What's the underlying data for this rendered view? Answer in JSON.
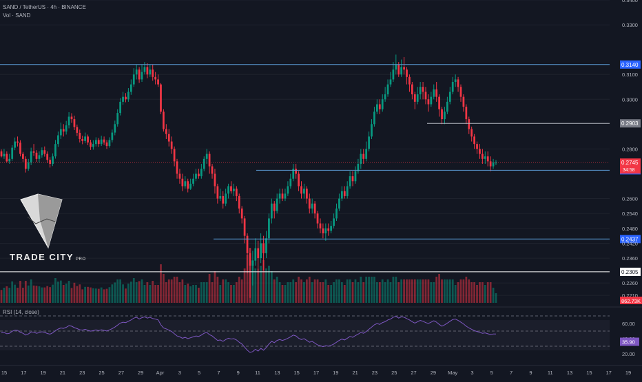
{
  "header": {
    "symbol_line": "SAND / TetherUS · 4h · BINANCE",
    "volume_line": "Vol · SAND",
    "rsi_line": "RSI (14, close)"
  },
  "logo": {
    "brand": "TRADE CITY",
    "suffix": "PRO"
  },
  "chart_data": {
    "type": "candlestick",
    "title": "SAND / TetherUS · 4h · BINANCE",
    "price_axis": {
      "range": [
        0.218,
        0.34
      ],
      "ticks": [
        "0.3400",
        "0.3300",
        "0.3100",
        "0.3000",
        "0.2800",
        "0.2600",
        "0.2540",
        "0.2480",
        "0.2420",
        "0.2360",
        "0.2260",
        "0.2210"
      ]
    },
    "time_axis": {
      "ticks": [
        "15",
        "17",
        "19",
        "21",
        "23",
        "25",
        "27",
        "29",
        "Apr",
        "3",
        "5",
        "7",
        "9",
        "11",
        "13",
        "15",
        "17",
        "19",
        "21",
        "23",
        "25",
        "27",
        "29",
        "May",
        "3",
        "5",
        "7",
        "9",
        "11",
        "13",
        "15",
        "17",
        "19"
      ]
    },
    "levels": [
      {
        "price": 0.314,
        "label": "0.3140",
        "color": "#5b9bd5",
        "style": "blue"
      },
      {
        "price": 0.2903,
        "label": "0.2903",
        "color": "#b2b5be",
        "style": "grey"
      },
      {
        "price": 0.2714,
        "label": "0.2714",
        "color": "#5b9bd5",
        "style": "blue"
      },
      {
        "price": 0.2437,
        "label": "0.2437",
        "color": "#5b9bd5",
        "style": "blue"
      },
      {
        "price": 0.2305,
        "label": "0.2305",
        "color": "#ffffff",
        "style": "white"
      }
    ],
    "last_price": {
      "value": "0.2745",
      "countdown": "34:58",
      "color": "#f23645"
    },
    "volume": {
      "label": "862.73K",
      "color": "#f23645"
    },
    "rsi": {
      "upper": "60.00",
      "middle": "40.00",
      "lower": "20.00",
      "value": "35.90",
      "range": [
        10,
        80
      ],
      "bands": [
        70,
        50,
        30
      ]
    },
    "candles": [
      [
        0.279,
        0.277,
        0.2798,
        0.2766
      ],
      [
        0.277,
        0.278,
        0.28,
        0.276
      ],
      [
        0.278,
        0.275,
        0.279,
        0.2745
      ],
      [
        0.275,
        0.276,
        0.278,
        0.274
      ],
      [
        0.276,
        0.2805,
        0.2815,
        0.2752
      ],
      [
        0.2805,
        0.283,
        0.2846,
        0.2795
      ],
      [
        0.283,
        0.2825,
        0.285,
        0.281
      ],
      [
        0.2825,
        0.278,
        0.2835,
        0.277
      ],
      [
        0.278,
        0.276,
        0.2788,
        0.2748
      ],
      [
        0.276,
        0.272,
        0.277,
        0.2705
      ],
      [
        0.272,
        0.2745,
        0.276,
        0.2712
      ],
      [
        0.2745,
        0.279,
        0.2805,
        0.2735
      ],
      [
        0.279,
        0.2785,
        0.282,
        0.2772
      ],
      [
        0.2785,
        0.276,
        0.2795,
        0.2748
      ],
      [
        0.276,
        0.2775,
        0.279,
        0.2745
      ],
      [
        0.2775,
        0.2795,
        0.2806,
        0.2765
      ],
      [
        0.2795,
        0.278,
        0.281,
        0.2769
      ],
      [
        0.278,
        0.2756,
        0.279,
        0.2744
      ],
      [
        0.2756,
        0.274,
        0.2767,
        0.2725
      ],
      [
        0.274,
        0.277,
        0.2782,
        0.2731
      ],
      [
        0.277,
        0.282,
        0.2836,
        0.2761
      ],
      [
        0.282,
        0.2855,
        0.287,
        0.2808
      ],
      [
        0.2855,
        0.288,
        0.2906,
        0.284
      ],
      [
        0.288,
        0.287,
        0.29,
        0.285
      ],
      [
        0.287,
        0.2895,
        0.2913,
        0.2858
      ],
      [
        0.2895,
        0.293,
        0.2948,
        0.2883
      ],
      [
        0.293,
        0.292,
        0.2944,
        0.2905
      ],
      [
        0.292,
        0.2888,
        0.2934,
        0.2876
      ],
      [
        0.2888,
        0.2865,
        0.2898,
        0.2852
      ],
      [
        0.2865,
        0.284,
        0.2878,
        0.2826
      ],
      [
        0.284,
        0.2832,
        0.2853,
        0.2819
      ],
      [
        0.2832,
        0.285,
        0.2866,
        0.2823
      ],
      [
        0.285,
        0.2826,
        0.2858,
        0.2815
      ],
      [
        0.2826,
        0.2808,
        0.2837,
        0.2796
      ],
      [
        0.2808,
        0.282,
        0.2835,
        0.2797
      ],
      [
        0.282,
        0.2836,
        0.2847,
        0.281
      ],
      [
        0.2836,
        0.282,
        0.2844,
        0.2808
      ],
      [
        0.282,
        0.2838,
        0.2853,
        0.2812
      ],
      [
        0.2838,
        0.2826,
        0.285,
        0.2816
      ],
      [
        0.2826,
        0.2812,
        0.2836,
        0.28
      ],
      [
        0.2812,
        0.2836,
        0.2847,
        0.2805
      ],
      [
        0.2836,
        0.2866,
        0.2878,
        0.2826
      ],
      [
        0.2866,
        0.29,
        0.2914,
        0.2855
      ],
      [
        0.29,
        0.2945,
        0.296,
        0.289
      ],
      [
        0.2945,
        0.299,
        0.3005,
        0.2935
      ],
      [
        0.299,
        0.301,
        0.303,
        0.2978
      ],
      [
        0.301,
        0.3,
        0.3025,
        0.2988
      ],
      [
        0.3,
        0.303,
        0.3045,
        0.299
      ],
      [
        0.303,
        0.306,
        0.308,
        0.3018
      ],
      [
        0.306,
        0.31,
        0.3125,
        0.305
      ],
      [
        0.31,
        0.312,
        0.314,
        0.308
      ],
      [
        0.312,
        0.308,
        0.313,
        0.3066
      ],
      [
        0.308,
        0.311,
        0.314,
        0.307
      ],
      [
        0.311,
        0.313,
        0.315,
        0.31
      ],
      [
        0.313,
        0.31,
        0.3145,
        0.3085
      ],
      [
        0.31,
        0.312,
        0.314,
        0.309
      ],
      [
        0.312,
        0.309,
        0.314,
        0.3075
      ],
      [
        0.309,
        0.308,
        0.311,
        0.306
      ],
      [
        0.308,
        0.306,
        0.31,
        0.305
      ],
      [
        0.306,
        0.295,
        0.3065,
        0.294
      ],
      [
        0.295,
        0.288,
        0.296,
        0.287
      ],
      [
        0.288,
        0.286,
        0.29,
        0.284
      ],
      [
        0.286,
        0.283,
        0.288,
        0.281
      ],
      [
        0.283,
        0.28,
        0.285,
        0.278
      ],
      [
        0.28,
        0.275,
        0.281,
        0.273
      ],
      [
        0.275,
        0.27,
        0.276,
        0.268
      ],
      [
        0.27,
        0.268,
        0.272,
        0.266
      ],
      [
        0.268,
        0.265,
        0.27,
        0.263
      ],
      [
        0.265,
        0.267,
        0.269,
        0.264
      ],
      [
        0.267,
        0.264,
        0.268,
        0.2625
      ],
      [
        0.264,
        0.266,
        0.268,
        0.2635
      ],
      [
        0.266,
        0.268,
        0.27,
        0.265
      ],
      [
        0.268,
        0.27,
        0.272,
        0.267
      ],
      [
        0.27,
        0.269,
        0.272,
        0.268
      ],
      [
        0.269,
        0.272,
        0.274,
        0.268
      ],
      [
        0.272,
        0.276,
        0.277,
        0.271
      ],
      [
        0.276,
        0.278,
        0.28,
        0.274
      ],
      [
        0.278,
        0.273,
        0.279,
        0.27
      ],
      [
        0.273,
        0.27,
        0.274,
        0.268
      ],
      [
        0.27,
        0.265,
        0.272,
        0.262
      ],
      [
        0.265,
        0.26,
        0.266,
        0.258
      ],
      [
        0.26,
        0.261,
        0.264,
        0.259
      ],
      [
        0.261,
        0.258,
        0.263,
        0.256
      ],
      [
        0.258,
        0.262,
        0.264,
        0.257
      ],
      [
        0.262,
        0.265,
        0.266,
        0.26
      ],
      [
        0.265,
        0.263,
        0.267,
        0.262
      ],
      [
        0.263,
        0.264,
        0.266,
        0.261
      ],
      [
        0.264,
        0.261,
        0.265,
        0.259
      ],
      [
        0.261,
        0.256,
        0.262,
        0.254
      ],
      [
        0.256,
        0.252,
        0.257,
        0.25
      ],
      [
        0.252,
        0.245,
        0.253,
        0.242
      ],
      [
        0.245,
        0.238,
        0.246,
        0.23
      ],
      [
        0.238,
        0.233,
        0.24,
        0.22
      ],
      [
        0.233,
        0.235,
        0.239,
        0.225
      ],
      [
        0.235,
        0.24,
        0.244,
        0.233
      ],
      [
        0.24,
        0.236,
        0.243,
        0.232
      ],
      [
        0.236,
        0.242,
        0.246,
        0.234
      ],
      [
        0.242,
        0.238,
        0.245,
        0.231
      ],
      [
        0.238,
        0.244,
        0.247,
        0.236
      ],
      [
        0.244,
        0.252,
        0.254,
        0.242
      ],
      [
        0.252,
        0.258,
        0.26,
        0.25
      ],
      [
        0.258,
        0.255,
        0.259,
        0.252
      ],
      [
        0.255,
        0.26,
        0.262,
        0.254
      ],
      [
        0.26,
        0.262,
        0.264,
        0.258
      ],
      [
        0.262,
        0.26,
        0.264,
        0.259
      ],
      [
        0.26,
        0.262,
        0.264,
        0.259
      ],
      [
        0.262,
        0.265,
        0.267,
        0.261
      ],
      [
        0.265,
        0.268,
        0.27,
        0.264
      ],
      [
        0.268,
        0.272,
        0.274,
        0.267
      ],
      [
        0.272,
        0.27,
        0.274,
        0.268
      ],
      [
        0.27,
        0.265,
        0.271,
        0.263
      ],
      [
        0.265,
        0.262,
        0.267,
        0.26
      ],
      [
        0.262,
        0.264,
        0.266,
        0.26
      ],
      [
        0.264,
        0.26,
        0.265,
        0.258
      ],
      [
        0.26,
        0.256,
        0.262,
        0.254
      ],
      [
        0.256,
        0.258,
        0.26,
        0.254
      ],
      [
        0.258,
        0.254,
        0.259,
        0.252
      ],
      [
        0.254,
        0.25,
        0.255,
        0.248
      ],
      [
        0.25,
        0.248,
        0.252,
        0.246
      ],
      [
        0.248,
        0.246,
        0.25,
        0.244
      ],
      [
        0.246,
        0.248,
        0.25,
        0.243
      ],
      [
        0.248,
        0.247,
        0.25,
        0.245
      ],
      [
        0.247,
        0.249,
        0.251,
        0.246
      ],
      [
        0.249,
        0.252,
        0.254,
        0.248
      ],
      [
        0.252,
        0.256,
        0.258,
        0.251
      ],
      [
        0.256,
        0.26,
        0.262,
        0.255
      ],
      [
        0.26,
        0.263,
        0.265,
        0.259
      ],
      [
        0.263,
        0.261,
        0.265,
        0.26
      ],
      [
        0.261,
        0.265,
        0.267,
        0.26
      ],
      [
        0.265,
        0.269,
        0.271,
        0.264
      ],
      [
        0.269,
        0.267,
        0.271,
        0.265
      ],
      [
        0.267,
        0.271,
        0.273,
        0.266
      ],
      [
        0.271,
        0.274,
        0.276,
        0.27
      ],
      [
        0.274,
        0.278,
        0.28,
        0.272
      ],
      [
        0.278,
        0.276,
        0.28,
        0.274
      ],
      [
        0.276,
        0.28,
        0.283,
        0.275
      ],
      [
        0.28,
        0.285,
        0.287,
        0.279
      ],
      [
        0.285,
        0.29,
        0.292,
        0.284
      ],
      [
        0.29,
        0.295,
        0.297,
        0.289
      ],
      [
        0.295,
        0.298,
        0.3,
        0.294
      ],
      [
        0.298,
        0.296,
        0.3,
        0.294
      ],
      [
        0.296,
        0.3,
        0.302,
        0.295
      ],
      [
        0.3,
        0.302,
        0.305,
        0.299
      ],
      [
        0.302,
        0.306,
        0.308,
        0.301
      ],
      [
        0.306,
        0.308,
        0.311,
        0.305
      ],
      [
        0.308,
        0.312,
        0.315,
        0.307
      ],
      [
        0.312,
        0.314,
        0.318,
        0.31
      ],
      [
        0.314,
        0.31,
        0.315,
        0.309
      ],
      [
        0.31,
        0.313,
        0.316,
        0.309
      ],
      [
        0.313,
        0.312,
        0.317,
        0.31
      ],
      [
        0.312,
        0.309,
        0.313,
        0.306
      ],
      [
        0.309,
        0.306,
        0.31,
        0.303
      ],
      [
        0.306,
        0.302,
        0.307,
        0.3
      ],
      [
        0.302,
        0.299,
        0.303,
        0.296
      ],
      [
        0.299,
        0.302,
        0.305,
        0.298
      ],
      [
        0.302,
        0.305,
        0.307,
        0.3
      ],
      [
        0.305,
        0.303,
        0.307,
        0.3
      ],
      [
        0.303,
        0.3,
        0.305,
        0.298
      ],
      [
        0.3,
        0.298,
        0.302,
        0.295
      ],
      [
        0.298,
        0.301,
        0.303,
        0.297
      ],
      [
        0.301,
        0.304,
        0.306,
        0.3
      ],
      [
        0.304,
        0.301,
        0.307,
        0.299
      ],
      [
        0.301,
        0.296,
        0.302,
        0.293
      ],
      [
        0.296,
        0.292,
        0.297,
        0.29
      ],
      [
        0.292,
        0.295,
        0.297,
        0.29
      ],
      [
        0.295,
        0.299,
        0.301,
        0.294
      ],
      [
        0.299,
        0.303,
        0.305,
        0.298
      ],
      [
        0.303,
        0.307,
        0.309,
        0.302
      ],
      [
        0.307,
        0.308,
        0.31,
        0.305
      ],
      [
        0.308,
        0.305,
        0.309,
        0.303
      ],
      [
        0.305,
        0.301,
        0.306,
        0.299
      ],
      [
        0.301,
        0.297,
        0.302,
        0.295
      ],
      [
        0.297,
        0.292,
        0.298,
        0.29
      ],
      [
        0.292,
        0.288,
        0.293,
        0.286
      ],
      [
        0.288,
        0.285,
        0.289,
        0.283
      ],
      [
        0.285,
        0.282,
        0.286,
        0.28
      ],
      [
        0.282,
        0.28,
        0.283,
        0.278
      ],
      [
        0.28,
        0.278,
        0.282,
        0.276
      ],
      [
        0.278,
        0.276,
        0.28,
        0.274
      ],
      [
        0.276,
        0.277,
        0.279,
        0.274
      ],
      [
        0.277,
        0.275,
        0.279,
        0.273
      ],
      [
        0.275,
        0.273,
        0.277,
        0.271
      ],
      [
        0.273,
        0.2745,
        0.276,
        0.272
      ],
      [
        0.2745,
        0.2745,
        0.2755,
        0.2735
      ]
    ]
  }
}
